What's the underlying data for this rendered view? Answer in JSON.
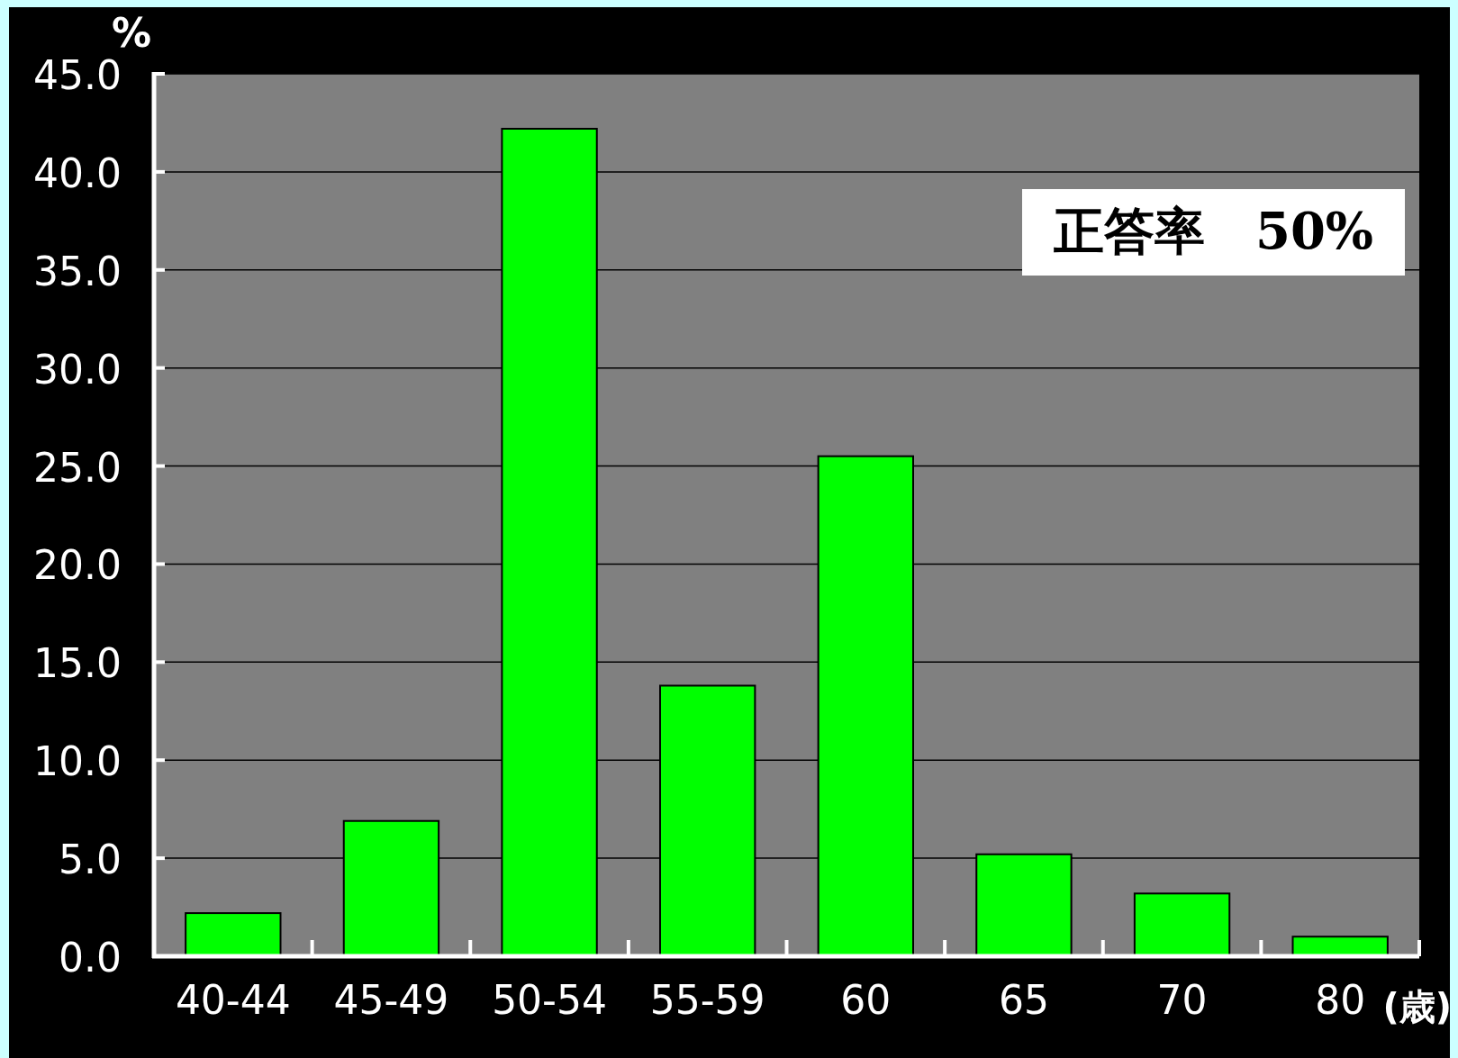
{
  "chart_data": {
    "type": "bar",
    "ylabel": "%",
    "xlabel": "(歳)",
    "categories": [
      "40-44",
      "45-49",
      "50-54",
      "55-59",
      "60",
      "65",
      "70",
      "80"
    ],
    "values": [
      2.2,
      6.9,
      42.2,
      13.8,
      25.5,
      5.2,
      3.2,
      1.0
    ],
    "color": "#00ff00",
    "ylim": [
      0,
      45
    ],
    "yticks": [
      {
        "value": 0,
        "label": "0.0"
      },
      {
        "value": 5,
        "label": "5.0"
      },
      {
        "value": 10,
        "label": "10.0"
      },
      {
        "value": 15,
        "label": "15.0"
      },
      {
        "value": 20,
        "label": "20.0"
      },
      {
        "value": 25,
        "label": "25.0"
      },
      {
        "value": 30,
        "label": "30.0"
      },
      {
        "value": 35,
        "label": "35.0"
      },
      {
        "value": 40,
        "label": "40.0"
      },
      {
        "value": 45,
        "label": "45.0"
      }
    ],
    "grid": "y",
    "annotations": [
      "正答率　50%"
    ]
  }
}
